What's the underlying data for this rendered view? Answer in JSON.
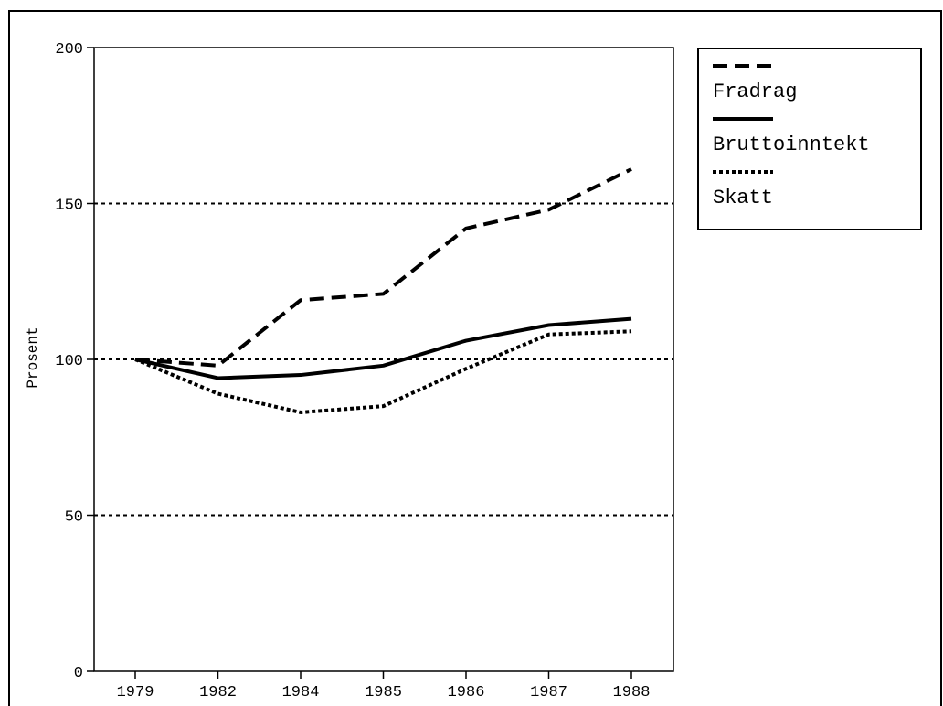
{
  "chart_data": {
    "type": "line",
    "title": "",
    "xlabel": "",
    "ylabel": "Prosent",
    "categories": [
      "1979",
      "1982",
      "1984",
      "1985",
      "1986",
      "1987",
      "1988"
    ],
    "ylim": [
      0,
      200
    ],
    "yticks": [
      0,
      50,
      100,
      150,
      200
    ],
    "grid": "horizontal dotted at 50, 100, 150",
    "legend_position": "top-right, outside plot",
    "series": [
      {
        "name": "Fradrag",
        "style": "dashed",
        "color": "#000000",
        "values": [
          100,
          98,
          119,
          121,
          142,
          148,
          161
        ]
      },
      {
        "name": "Bruttoinntekt",
        "style": "solid",
        "color": "#000000",
        "values": [
          100,
          94,
          95,
          98,
          106,
          111,
          113
        ]
      },
      {
        "name": "Skatt",
        "style": "dotted",
        "color": "#000000",
        "values": [
          100,
          89,
          83,
          85,
          97,
          108,
          109
        ]
      }
    ]
  }
}
